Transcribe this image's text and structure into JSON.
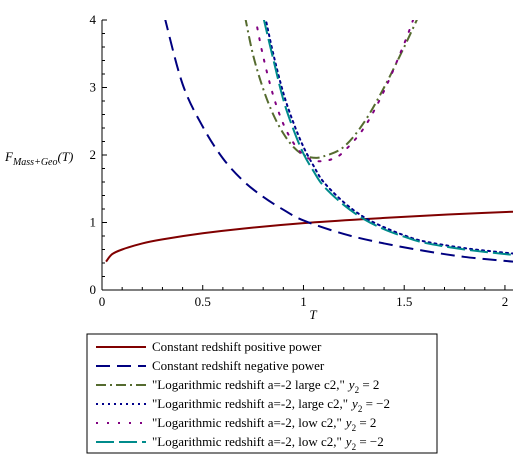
{
  "chart_data": {
    "type": "line",
    "xlabel": "T",
    "ylabel_main": "F",
    "ylabel_sub": "Mass+Geo",
    "ylabel_arg": "(T)",
    "xlim": [
      0,
      2.04
    ],
    "ylim": [
      0,
      4
    ],
    "xticks": [
      0,
      0.5,
      1,
      1.5,
      2
    ],
    "xtick_labels": [
      "0",
      "0.5",
      "1",
      "1.5",
      "2"
    ],
    "yticks": [
      0,
      1,
      2,
      3,
      4
    ],
    "ytick_labels": [
      "0",
      "1",
      "2",
      "3",
      "4"
    ],
    "grid": false,
    "legend_position": "bottom",
    "series": [
      {
        "name": "Constant redshift positive power",
        "color": "#800000",
        "dash": "solid",
        "x": [
          0.02,
          0.05,
          0.1,
          0.2,
          0.3,
          0.5,
          0.7,
          1.0,
          1.3,
          1.6,
          1.8,
          2.04
        ],
        "y": [
          0.42,
          0.53,
          0.6,
          0.69,
          0.75,
          0.84,
          0.91,
          0.99,
          1.05,
          1.1,
          1.13,
          1.16
        ]
      },
      {
        "name": "Constant redshift negative power",
        "color": "#000080",
        "dash": "dash",
        "x": [
          0.31,
          0.4,
          0.5,
          0.6,
          0.7,
          0.8,
          0.9,
          1.0,
          1.2,
          1.4,
          1.6,
          1.8,
          2.04
        ],
        "y": [
          4.05,
          3.05,
          2.42,
          1.95,
          1.62,
          1.38,
          1.19,
          1.03,
          0.83,
          0.69,
          0.58,
          0.49,
          0.42
        ]
      },
      {
        "name": "\"Logarithmic redshift a=-2 large c2,\"",
        "name_math": "y",
        "name_sub": "2",
        "name_value": " = 2",
        "color": "#556b2f",
        "dash": "dashdot",
        "x": [
          0.71,
          0.75,
          0.8,
          0.85,
          0.9,
          0.95,
          1.0,
          1.05,
          1.1,
          1.2,
          1.3,
          1.4,
          1.5,
          1.57
        ],
        "y": [
          4.05,
          3.48,
          2.98,
          2.6,
          2.32,
          2.12,
          2.0,
          1.96,
          1.98,
          2.12,
          2.48,
          3.0,
          3.6,
          4.05
        ]
      },
      {
        "name": "\"Logarithmic redshift a=-2, large c2,\"",
        "name_math": "y",
        "name_sub": "2",
        "name_value": " = −2",
        "color": "#00008b",
        "dash": "dot",
        "x": [
          0.81,
          0.85,
          0.9,
          0.95,
          1.0,
          1.05,
          1.1,
          1.2,
          1.3,
          1.4,
          1.5,
          1.6,
          1.8,
          2.04
        ],
        "y": [
          4.05,
          3.5,
          2.92,
          2.48,
          2.12,
          1.84,
          1.6,
          1.3,
          1.08,
          0.93,
          0.81,
          0.72,
          0.62,
          0.54
        ]
      },
      {
        "name": "\"Logarithmic redshift a=-2, low c2,\"",
        "name_math": "y",
        "name_sub": "2",
        "name_value": " = 2",
        "color": "#800080",
        "dash": "sparsedot",
        "x": [
          0.76,
          0.8,
          0.85,
          0.9,
          0.95,
          1.0,
          1.05,
          1.1,
          1.15,
          1.2,
          1.3,
          1.4,
          1.5,
          1.55
        ],
        "y": [
          4.05,
          3.46,
          2.88,
          2.46,
          2.18,
          2.0,
          1.92,
          1.91,
          1.95,
          2.05,
          2.4,
          2.95,
          3.65,
          4.05
        ]
      },
      {
        "name": "\"Logarithmic redshift a=-2, low c2,\"",
        "name_math": "y",
        "name_sub": "2",
        "name_value": " = −2",
        "color": "#008b8b",
        "dash": "longdash",
        "x": [
          0.8,
          0.85,
          0.9,
          0.95,
          1.0,
          1.05,
          1.1,
          1.2,
          1.3,
          1.4,
          1.5,
          1.6,
          1.8,
          2.04
        ],
        "y": [
          4.05,
          3.42,
          2.82,
          2.38,
          2.02,
          1.76,
          1.54,
          1.26,
          1.05,
          0.9,
          0.79,
          0.7,
          0.6,
          0.52
        ]
      }
    ]
  }
}
